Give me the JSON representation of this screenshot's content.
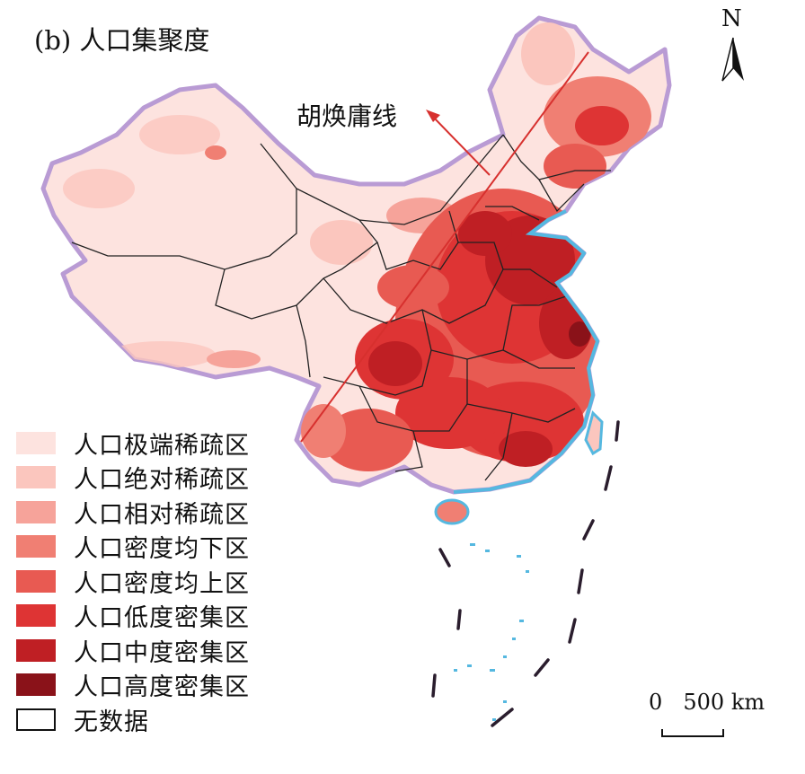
{
  "title": "(b) 人口集聚度",
  "hu_line_label": "胡焕庸线",
  "north_label": "N",
  "scale": {
    "zero": "0",
    "distance": "500 km"
  },
  "legend": [
    {
      "label": "人口极端稀疏区",
      "color": "#fde3df"
    },
    {
      "label": "人口绝对稀疏区",
      "color": "#fbc6be"
    },
    {
      "label": "人口相对稀疏区",
      "color": "#f6a39a"
    },
    {
      "label": "人口密度均下区",
      "color": "#f07f73"
    },
    {
      "label": "人口密度均上区",
      "color": "#e85a52"
    },
    {
      "label": "人口低度密集区",
      "color": "#de3434"
    },
    {
      "label": "人口中度密集区",
      "color": "#bf1f24"
    },
    {
      "label": "人口高度密集区",
      "color": "#8a1219"
    },
    {
      "label": "无数据",
      "color": "#ffffff"
    }
  ],
  "colors": {
    "border": "#b99bd4",
    "coast": "#55b8e0",
    "hu_line": "#d7302e"
  }
}
